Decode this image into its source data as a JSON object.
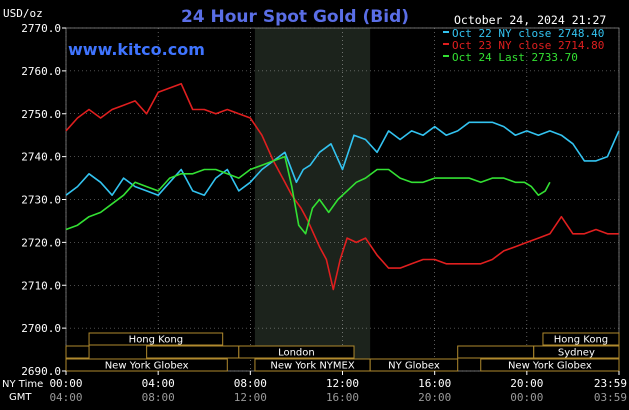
{
  "header": {
    "title": "24 Hour Spot Gold (Bid)",
    "unit": "USD/oz",
    "timestamp": "October 24, 2024 21:27",
    "watermark": "www.kitco.com"
  },
  "colors": {
    "background": "#000000",
    "grid": "#ffffff",
    "title": "#5a6ee6",
    "watermark": "#3f74ff",
    "session_panel": "#1c231c",
    "market_box_border": "#b08a2e",
    "market_box_text": "#ffffff",
    "axis_text": "#ffffff",
    "gmt_text": "#9a9a9a"
  },
  "legend": [
    {
      "label": "Oct 22 NY close 2748.40",
      "color": "#33c3f0"
    },
    {
      "label": "Oct 23 NY close 2714.80",
      "color": "#e01f1f"
    },
    {
      "label": "Oct 24 Last 2733.70",
      "color": "#33e033"
    }
  ],
  "bottom": {
    "ny_time_label": "NY Time",
    "gmt_label": "GMT",
    "ny_ticks": [
      "00:00",
      "04:00",
      "08:00",
      "12:00",
      "16:00",
      "20:00",
      "23:59"
    ],
    "gmt_ticks": [
      "04:00",
      "08:00",
      "12:00",
      "16:00",
      "20:00",
      "00:00",
      "03:59"
    ]
  },
  "markets": [
    {
      "label": "Hong Kong",
      "row": 0,
      "start": 1.0,
      "end": 6.8
    },
    {
      "label": "",
      "row": 1,
      "start": 0.0,
      "end": 1.0
    },
    {
      "label": "",
      "row": 1,
      "start": 3.5,
      "end": 7.5
    },
    {
      "label": "London",
      "row": 1,
      "start": 7.5,
      "end": 12.5
    },
    {
      "label": "New York Globex",
      "row": 2,
      "start": 0.0,
      "end": 7.0
    },
    {
      "label": "New York NYMEX",
      "row": 2,
      "start": 8.2,
      "end": 13.2
    },
    {
      "label": "NY Globex",
      "row": 2,
      "start": 13.2,
      "end": 17.0
    },
    {
      "label": "",
      "row": 1,
      "start": 17.0,
      "end": 20.3
    },
    {
      "label": "Sydney",
      "row": 1,
      "start": 20.3,
      "end": 24.0
    },
    {
      "label": "Hong Kong",
      "row": 0,
      "start": 20.7,
      "end": 24.0
    },
    {
      "label": "New York Globex",
      "row": 2,
      "start": 18.0,
      "end": 24.0
    }
  ],
  "chart_data": {
    "type": "line",
    "title": "24 Hour Spot Gold (Bid)",
    "ylabel": "USD/oz",
    "x_unit": "hours (NY time)",
    "xlim": [
      0,
      24
    ],
    "ylim": [
      2690,
      2770
    ],
    "yticks": [
      2690.0,
      2700.0,
      2710.0,
      2720.0,
      2730.0,
      2740.0,
      2750.0,
      2760.0,
      2770.0
    ],
    "ytick_labels": [
      "2690.0",
      "2700.0",
      "2710.0",
      "2720.0",
      "2730.0",
      "2740.0",
      "2750.0",
      "2760.0",
      "2770.0"
    ],
    "session_shade": [
      8.2,
      13.2
    ],
    "series": [
      {
        "name": "Oct 22 NY close 2748.40",
        "color": "#33c3f0",
        "x": [
          0,
          0.5,
          1,
          1.5,
          2,
          2.5,
          3,
          3.5,
          4,
          4.5,
          5,
          5.5,
          6,
          6.5,
          7,
          7.5,
          8,
          8.5,
          9,
          9.5,
          10,
          10.3,
          10.6,
          11,
          11.5,
          12,
          12.5,
          13,
          13.5,
          14,
          14.5,
          15,
          15.5,
          16,
          16.5,
          17,
          17.5,
          18,
          18.5,
          19,
          19.5,
          20,
          20.5,
          21,
          21.5,
          22,
          22.5,
          23,
          23.5,
          23.99
        ],
        "y": [
          2731,
          2733,
          2736,
          2734,
          2731,
          2735,
          2733,
          2732,
          2731,
          2734,
          2737,
          2732,
          2731,
          2735,
          2737,
          2732,
          2734,
          2737,
          2739,
          2741,
          2734,
          2737,
          2738,
          2741,
          2743,
          2737,
          2745,
          2744,
          2741,
          2746,
          2744,
          2746,
          2745,
          2747,
          2745,
          2746,
          2748,
          2748,
          2748,
          2747,
          2745,
          2746,
          2745,
          2746,
          2745,
          2743,
          2739,
          2739,
          2740,
          2746
        ]
      },
      {
        "name": "Oct 23 NY close 2714.80",
        "color": "#e01f1f",
        "x": [
          0,
          0.5,
          1,
          1.5,
          2,
          2.5,
          3,
          3.5,
          4,
          4.5,
          5,
          5.5,
          6,
          6.5,
          7,
          7.5,
          8,
          8.5,
          9,
          9.5,
          9.8,
          10.2,
          10.5,
          11,
          11.3,
          11.6,
          11.9,
          12.2,
          12.6,
          13,
          13.5,
          14,
          14.5,
          15,
          15.5,
          16,
          16.5,
          17,
          17.5,
          18,
          18.5,
          19,
          19.5,
          20,
          20.5,
          21,
          21.5,
          22,
          22.5,
          23,
          23.5,
          23.99
        ],
        "y": [
          2746,
          2749,
          2751,
          2749,
          2751,
          2752,
          2753,
          2750,
          2755,
          2756,
          2757,
          2751,
          2751,
          2750,
          2751,
          2750,
          2749,
          2745,
          2739,
          2734,
          2731,
          2728,
          2725,
          2719,
          2716,
          2709,
          2716,
          2721,
          2720,
          2721,
          2717,
          2714,
          2714,
          2715,
          2716,
          2716,
          2715,
          2715,
          2715,
          2715,
          2716,
          2718,
          2719,
          2720,
          2721,
          2722,
          2726,
          2722,
          2722,
          2723,
          2722,
          2722
        ]
      },
      {
        "name": "Oct 24 Last 2733.70",
        "color": "#33e033",
        "x": [
          0,
          0.5,
          1,
          1.5,
          2,
          2.5,
          3,
          3.5,
          4,
          4.5,
          5,
          5.5,
          6,
          6.5,
          7,
          7.5,
          8,
          8.5,
          9,
          9.5,
          9.8,
          10.1,
          10.4,
          10.7,
          11,
          11.4,
          11.8,
          12.2,
          12.6,
          13,
          13.5,
          14,
          14.5,
          15,
          15.5,
          16,
          16.5,
          17,
          17.5,
          18,
          18.5,
          19,
          19.5,
          19.9,
          20.2,
          20.5,
          20.8,
          21.0
        ],
        "y": [
          2723,
          2724,
          2726,
          2727,
          2729,
          2731,
          2734,
          2733,
          2732,
          2735,
          2736,
          2736,
          2737,
          2737,
          2736,
          2735,
          2737,
          2738,
          2739,
          2740,
          2733,
          2724,
          2722,
          2728,
          2730,
          2727,
          2730,
          2732,
          2734,
          2735,
          2737,
          2737,
          2735,
          2734,
          2734,
          2735,
          2735,
          2735,
          2735,
          2734,
          2735,
          2735,
          2734,
          2734,
          2733,
          2731,
          2732,
          2734
        ]
      }
    ]
  }
}
